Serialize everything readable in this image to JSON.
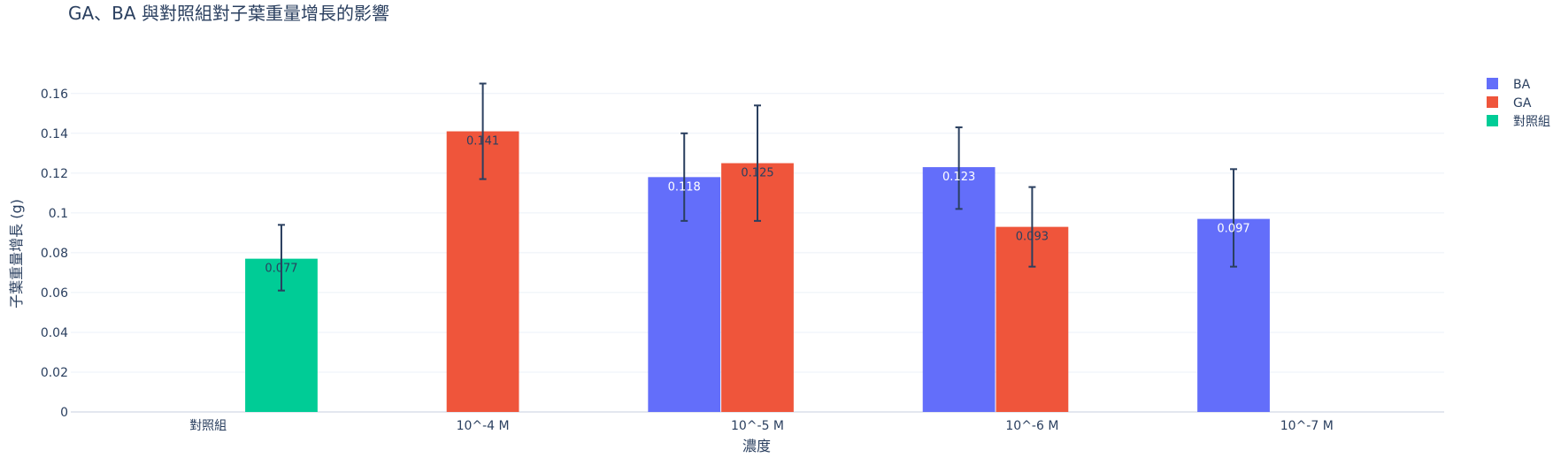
{
  "chart_data": {
    "type": "bar",
    "title": "GA、BA 與對照組對子葉重量增長的影響",
    "xlabel": "濃度",
    "ylabel": "子葉重量增長 (g)",
    "categories": [
      "對照組",
      "10^-4 M",
      "10^-5 M",
      "10^-6 M",
      "10^-7 M"
    ],
    "ylim": [
      0,
      0.175
    ],
    "yticks": [
      0,
      0.02,
      0.04,
      0.06,
      0.08,
      0.1,
      0.12,
      0.14,
      0.16
    ],
    "ytick_labels": [
      "0",
      "0.02",
      "0.04",
      "0.06",
      "0.08",
      "0.1",
      "0.12",
      "0.14",
      "0.16"
    ],
    "grid": true,
    "legend_position": "top-right",
    "series": [
      {
        "name": "BA",
        "color": "#636efa",
        "label_color": "#ffffff",
        "values": [
          null,
          null,
          0.118,
          0.123,
          0.097
        ],
        "labels": [
          null,
          null,
          "0.118",
          "0.123",
          "0.097"
        ],
        "error_low": [
          null,
          null,
          0.096,
          0.102,
          0.073
        ],
        "error_high": [
          null,
          null,
          0.14,
          0.143,
          0.122
        ]
      },
      {
        "name": "GA",
        "color": "#ef553b",
        "label_color": "#2a3f5f",
        "values": [
          null,
          0.141,
          0.125,
          0.093,
          null
        ],
        "labels": [
          null,
          "0.141",
          "0.125",
          "0.093",
          null
        ],
        "error_low": [
          null,
          0.117,
          0.096,
          0.073,
          null
        ],
        "error_high": [
          null,
          0.165,
          0.154,
          0.113,
          null
        ]
      },
      {
        "name": "對照組",
        "color": "#00cc96",
        "label_color": "#2a3f5f",
        "values": [
          0.077,
          null,
          null,
          null,
          null
        ],
        "labels": [
          "0.077",
          null,
          null,
          null,
          null
        ],
        "error_low": [
          0.061,
          null,
          null,
          null,
          null
        ],
        "error_high": [
          0.094,
          null,
          null,
          null,
          null
        ]
      }
    ]
  }
}
